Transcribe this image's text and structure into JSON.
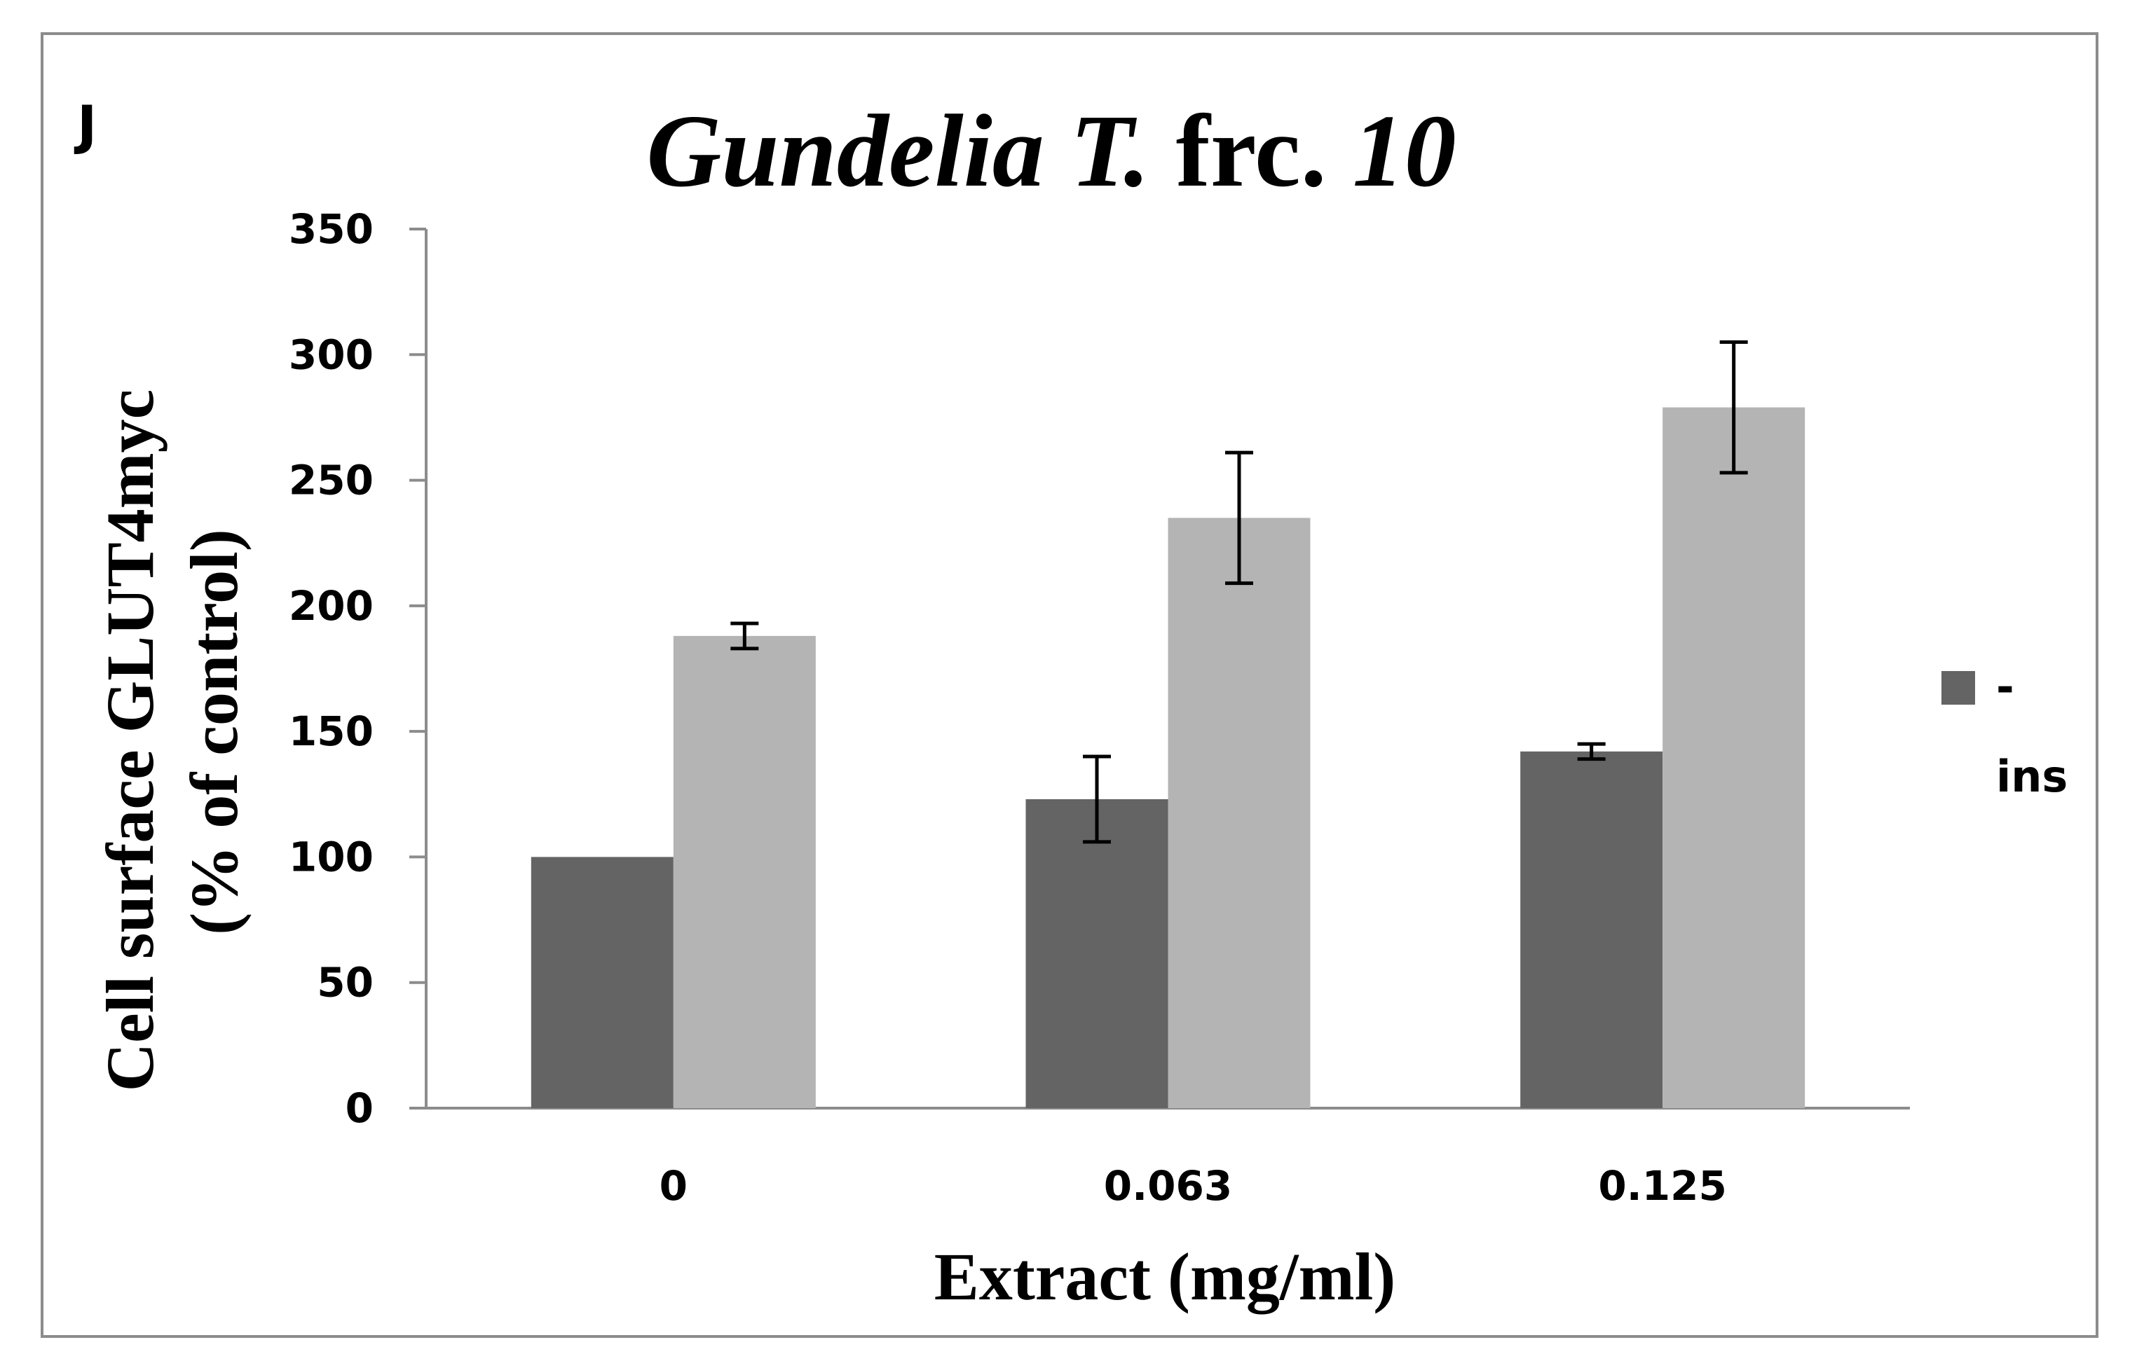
{
  "panel_label": "J",
  "chart_data": {
    "type": "bar",
    "title_parts": [
      {
        "text": "Gundelia T.",
        "italic": true
      },
      {
        "text": " frc. ",
        "italic": false
      },
      {
        "text": "10",
        "italic": true
      }
    ],
    "xlabel": "Extract (mg/ml)",
    "ylabel_lines": [
      "Cell surface GLUT4myc",
      "(% of control)"
    ],
    "categories": [
      "0",
      "0.063",
      "0.125"
    ],
    "ylim": [
      0,
      350
    ],
    "yticks": [
      0,
      50,
      100,
      150,
      200,
      250,
      300,
      350
    ],
    "grid": false,
    "legend_position": "right",
    "series": [
      {
        "name": "-",
        "color": "#646464",
        "values": [
          100,
          123,
          142
        ],
        "errors": [
          0,
          17,
          3
        ]
      },
      {
        "name": "ins",
        "color": "#b4b4b4",
        "values": [
          188,
          235,
          279
        ],
        "errors": [
          5,
          26,
          26
        ]
      }
    ]
  }
}
